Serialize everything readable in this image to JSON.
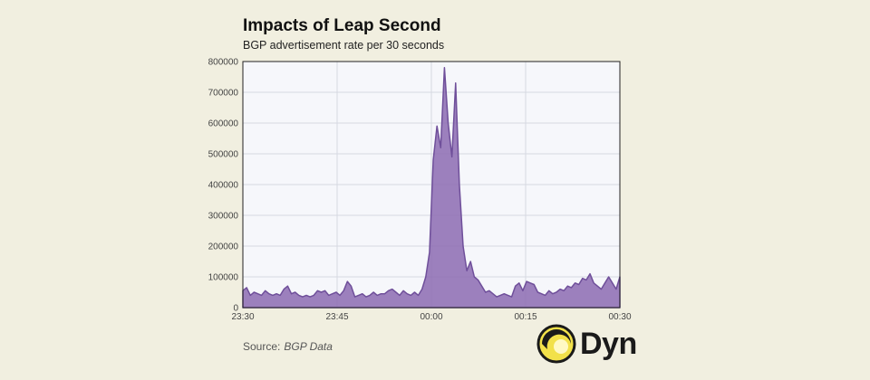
{
  "chart_data": {
    "type": "area",
    "title": "Impacts of Leap Second",
    "subtitle": "BGP advertisement rate per 30 seconds",
    "xlabel": "",
    "ylabel": "",
    "x_start": "23:30",
    "x_end": "00:30",
    "x_ticks": [
      "23:30",
      "23:45",
      "00:00",
      "00:15",
      "00:30"
    ],
    "y_ticks": [
      0,
      100000,
      200000,
      300000,
      400000,
      500000,
      600000,
      700000,
      800000
    ],
    "ylim": [
      0,
      800000
    ],
    "grid": true,
    "color": "#8c6bb1",
    "values": [
      55000,
      65000,
      40000,
      50000,
      45000,
      40000,
      55000,
      45000,
      40000,
      45000,
      40000,
      60000,
      70000,
      45000,
      50000,
      40000,
      35000,
      40000,
      35000,
      40000,
      55000,
      50000,
      55000,
      40000,
      45000,
      50000,
      40000,
      55000,
      85000,
      70000,
      35000,
      40000,
      45000,
      35000,
      40000,
      50000,
      40000,
      45000,
      45000,
      55000,
      60000,
      50000,
      40000,
      55000,
      45000,
      40000,
      50000,
      40000,
      60000,
      100000,
      180000,
      480000,
      590000,
      520000,
      780000,
      600000,
      490000,
      730000,
      400000,
      200000,
      120000,
      150000,
      100000,
      90000,
      70000,
      50000,
      55000,
      45000,
      35000,
      40000,
      45000,
      40000,
      35000,
      70000,
      80000,
      55000,
      85000,
      80000,
      75000,
      50000,
      45000,
      40000,
      55000,
      45000,
      50000,
      60000,
      55000,
      70000,
      65000,
      80000,
      75000,
      95000,
      90000,
      110000,
      80000,
      70000,
      60000,
      80000,
      100000,
      80000,
      60000,
      100000
    ],
    "source_label": "Source:",
    "source_value": "BGP Data"
  },
  "logo": {
    "text": "Dyn"
  }
}
